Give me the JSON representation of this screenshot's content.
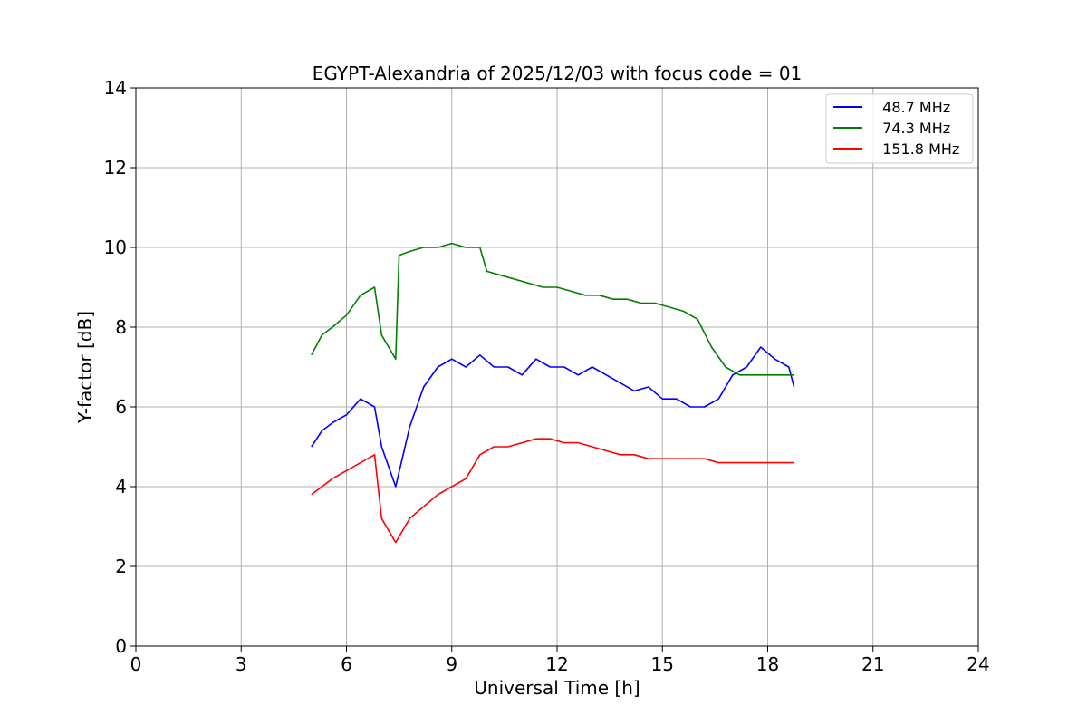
{
  "chart_data": {
    "type": "line",
    "title": "EGYPT-Alexandria of 2025/12/03 with focus code = 01",
    "xlabel": "Universal Time [h]",
    "ylabel": "Y-factor [dB]",
    "xlim": [
      0,
      24
    ],
    "ylim": [
      0,
      14
    ],
    "xticks": [
      0,
      3,
      6,
      9,
      12,
      15,
      18,
      21,
      24
    ],
    "yticks": [
      0,
      2,
      4,
      6,
      8,
      10,
      12,
      14
    ],
    "grid": true,
    "legend_position": "top-right",
    "series": [
      {
        "name": "  48.7 MHz",
        "color": "#0000ff",
        "points": [
          [
            5.0,
            5.0
          ],
          [
            5.3,
            5.4
          ],
          [
            5.6,
            5.6
          ],
          [
            6.0,
            5.8
          ],
          [
            6.4,
            6.2
          ],
          [
            6.8,
            6.0
          ],
          [
            7.0,
            5.0
          ],
          [
            7.4,
            4.0
          ],
          [
            7.8,
            5.5
          ],
          [
            8.2,
            6.5
          ],
          [
            8.6,
            7.0
          ],
          [
            9.0,
            7.2
          ],
          [
            9.4,
            7.0
          ],
          [
            9.8,
            7.3
          ],
          [
            10.2,
            7.0
          ],
          [
            10.6,
            7.0
          ],
          [
            11.0,
            6.8
          ],
          [
            11.4,
            7.2
          ],
          [
            11.8,
            7.0
          ],
          [
            12.2,
            7.0
          ],
          [
            12.6,
            6.8
          ],
          [
            13.0,
            7.0
          ],
          [
            13.4,
            6.8
          ],
          [
            13.8,
            6.6
          ],
          [
            14.2,
            6.4
          ],
          [
            14.6,
            6.5
          ],
          [
            15.0,
            6.2
          ],
          [
            15.4,
            6.2
          ],
          [
            15.8,
            6.0
          ],
          [
            16.2,
            6.0
          ],
          [
            16.6,
            6.2
          ],
          [
            17.0,
            6.8
          ],
          [
            17.4,
            7.0
          ],
          [
            17.8,
            7.5
          ],
          [
            18.2,
            7.2
          ],
          [
            18.6,
            7.0
          ],
          [
            18.75,
            6.5
          ]
        ]
      },
      {
        "name": "  74.3 MHz",
        "color": "#008000",
        "points": [
          [
            5.0,
            7.3
          ],
          [
            5.3,
            7.8
          ],
          [
            5.6,
            8.0
          ],
          [
            6.0,
            8.3
          ],
          [
            6.4,
            8.8
          ],
          [
            6.8,
            9.0
          ],
          [
            7.0,
            7.8
          ],
          [
            7.4,
            7.2
          ],
          [
            7.5,
            9.8
          ],
          [
            7.8,
            9.9
          ],
          [
            8.2,
            10.0
          ],
          [
            8.6,
            10.0
          ],
          [
            9.0,
            10.1
          ],
          [
            9.4,
            10.0
          ],
          [
            9.8,
            10.0
          ],
          [
            10.0,
            9.4
          ],
          [
            10.4,
            9.3
          ],
          [
            10.8,
            9.2
          ],
          [
            11.2,
            9.1
          ],
          [
            11.6,
            9.0
          ],
          [
            12.0,
            9.0
          ],
          [
            12.4,
            8.9
          ],
          [
            12.8,
            8.8
          ],
          [
            13.2,
            8.8
          ],
          [
            13.6,
            8.7
          ],
          [
            14.0,
            8.7
          ],
          [
            14.4,
            8.6
          ],
          [
            14.8,
            8.6
          ],
          [
            15.2,
            8.5
          ],
          [
            15.6,
            8.4
          ],
          [
            16.0,
            8.2
          ],
          [
            16.4,
            7.5
          ],
          [
            16.8,
            7.0
          ],
          [
            17.2,
            6.8
          ],
          [
            17.6,
            6.8
          ],
          [
            18.0,
            6.8
          ],
          [
            18.4,
            6.8
          ],
          [
            18.75,
            6.8
          ]
        ]
      },
      {
        "name": "  151.8 MHz",
        "color": "#ff0000",
        "points": [
          [
            5.0,
            3.8
          ],
          [
            5.3,
            4.0
          ],
          [
            5.6,
            4.2
          ],
          [
            6.0,
            4.4
          ],
          [
            6.4,
            4.6
          ],
          [
            6.8,
            4.8
          ],
          [
            7.0,
            3.2
          ],
          [
            7.4,
            2.6
          ],
          [
            7.8,
            3.2
          ],
          [
            8.2,
            3.5
          ],
          [
            8.6,
            3.8
          ],
          [
            9.0,
            4.0
          ],
          [
            9.4,
            4.2
          ],
          [
            9.8,
            4.8
          ],
          [
            10.2,
            5.0
          ],
          [
            10.6,
            5.0
          ],
          [
            11.0,
            5.1
          ],
          [
            11.4,
            5.2
          ],
          [
            11.8,
            5.2
          ],
          [
            12.2,
            5.1
          ],
          [
            12.6,
            5.1
          ],
          [
            13.0,
            5.0
          ],
          [
            13.4,
            4.9
          ],
          [
            13.8,
            4.8
          ],
          [
            14.2,
            4.8
          ],
          [
            14.6,
            4.7
          ],
          [
            15.0,
            4.7
          ],
          [
            15.4,
            4.7
          ],
          [
            15.8,
            4.7
          ],
          [
            16.2,
            4.7
          ],
          [
            16.6,
            4.6
          ],
          [
            17.0,
            4.6
          ],
          [
            17.4,
            4.6
          ],
          [
            17.8,
            4.6
          ],
          [
            18.2,
            4.6
          ],
          [
            18.6,
            4.6
          ],
          [
            18.75,
            4.6
          ]
        ]
      }
    ]
  }
}
